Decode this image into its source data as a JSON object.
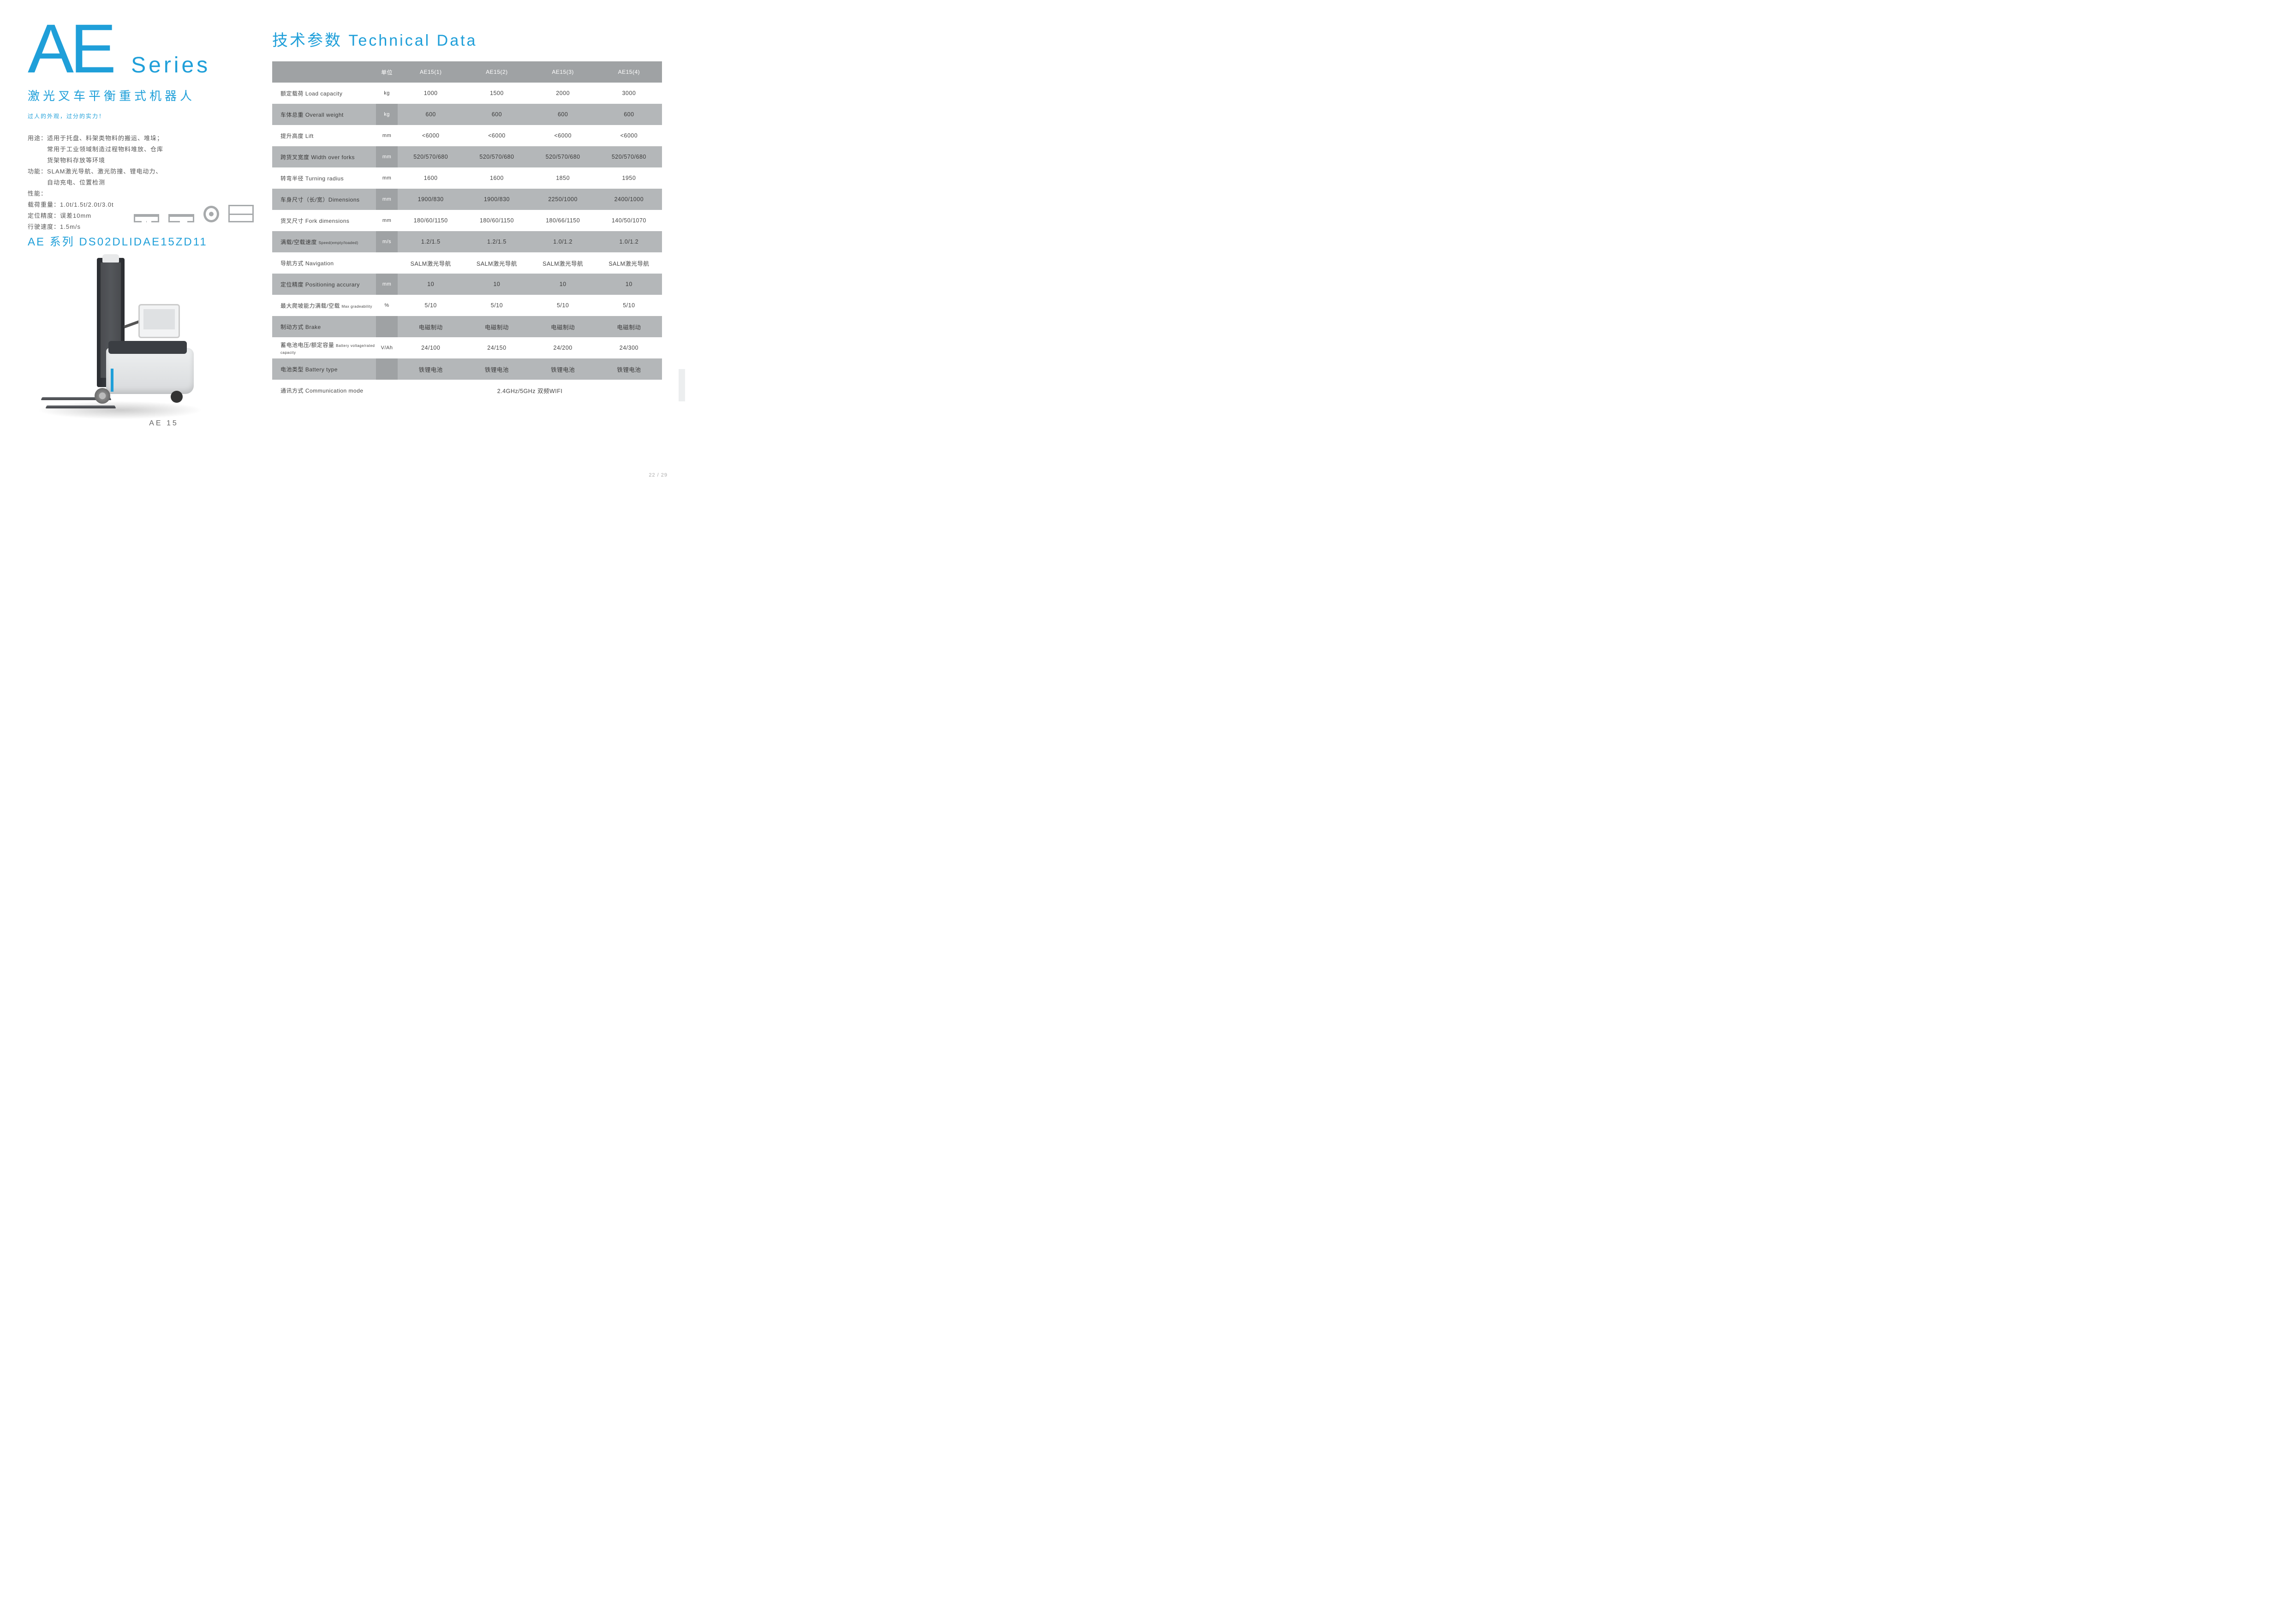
{
  "left": {
    "title_main": "AE",
    "title_sub": "Series",
    "subtitle_cn": "激光叉车平衡重式机器人",
    "tagline": "过人的外观，过分的实力！",
    "usage_label": "用途：",
    "usage_l1": "适用于托盘、料架类物料的搬运、堆垛；",
    "usage_l2": "常用于工业领域制造过程物料堆放、仓库",
    "usage_l3": "货架物料存放等环境",
    "func_label": "功能：",
    "func_l1": "SLAM激光导航、激光防撞、锂电动力、",
    "func_l2": "自动充电、位置检测",
    "perf_label": "性能：",
    "load_line": "载荷重量：1.0t/1.5t/2.0t/3.0t",
    "precision_line": "定位精度：误差10mm",
    "speed_line": "行驶速度：1.5m/s",
    "model_line": "AE 系列 DS02DLIDAE15ZD11",
    "model_caption": "AE 15"
  },
  "right": {
    "title": "技术参数 Technical Data",
    "columns": [
      "单位",
      "AE15(1)",
      "AE15(2)",
      "AE15(3)",
      "AE15(4)"
    ],
    "rows": [
      {
        "label": "额定载荷 Load capacity",
        "unit": "kg",
        "vals": [
          "1000",
          "1500",
          "2000",
          "3000"
        ]
      },
      {
        "label": "车体总重 Overall weight",
        "unit": "kg",
        "vals": [
          "600",
          "600",
          "600",
          "600"
        ]
      },
      {
        "label": "提升高度 Lift",
        "unit": "mm",
        "vals": [
          "<6000",
          "<6000",
          "<6000",
          "<6000"
        ]
      },
      {
        "label": "跨货叉宽度 Width over forks",
        "unit": "mm",
        "vals": [
          "520/570/680",
          "520/570/680",
          "520/570/680",
          "520/570/680"
        ]
      },
      {
        "label": "转弯半径 Turning radius",
        "unit": "mm",
        "vals": [
          "1600",
          "1600",
          "1850",
          "1950"
        ]
      },
      {
        "label": "车身尺寸（长/宽）Dimensions",
        "unit": "mm",
        "vals": [
          "1900/830",
          "1900/830",
          "2250/1000",
          "2400/1000"
        ]
      },
      {
        "label": "货叉尺寸 Fork dimensions",
        "unit": "mm",
        "vals": [
          "180/60/1150",
          "180/60/1150",
          "180/66/1150",
          "140/50/1070"
        ]
      },
      {
        "label": "满载/空载速度 Speed(empty/loaded)",
        "unit": "m/s",
        "vals": [
          "1.2/1.5",
          "1.2/1.5",
          "1.0/1.2",
          "1.0/1.2"
        ]
      },
      {
        "label": "导航方式 Navigation",
        "unit": "",
        "vals": [
          "SALM激光导航",
          "SALM激光导航",
          "SALM激光导航",
          "SALM激光导航"
        ]
      },
      {
        "label": "定位精度 Positioning accurary",
        "unit": "mm",
        "vals": [
          "10",
          "10",
          "10",
          "10"
        ]
      },
      {
        "label": "最大爬坡能力满载/空载 Max gradeability",
        "unit": "%",
        "vals": [
          "5/10",
          "5/10",
          "5/10",
          "5/10"
        ]
      },
      {
        "label": "制动方式 Brake",
        "unit": "",
        "vals": [
          "电磁制动",
          "电磁制动",
          "电磁制动",
          "电磁制动"
        ]
      },
      {
        "label": "蓄电池电压/额定容量 Battery voltage/rated capacity",
        "unit": "V/Ah",
        "vals": [
          "24/100",
          "24/150",
          "24/200",
          "24/300"
        ]
      },
      {
        "label": "电池类型 Battery type",
        "unit": "",
        "vals": [
          "铁锂电池",
          "铁锂电池",
          "铁锂电池",
          "铁锂电池"
        ]
      }
    ],
    "comm_label": "通讯方式 Communication mode",
    "comm_value": "2.4GHz/5GHz 双频WIFI"
  },
  "page_num": "22 / 29",
  "colors": {
    "accent": "#1f9fd9",
    "table_odd": "#b4b7b9",
    "table_header": "#9fa2a4",
    "text": "#444444"
  }
}
